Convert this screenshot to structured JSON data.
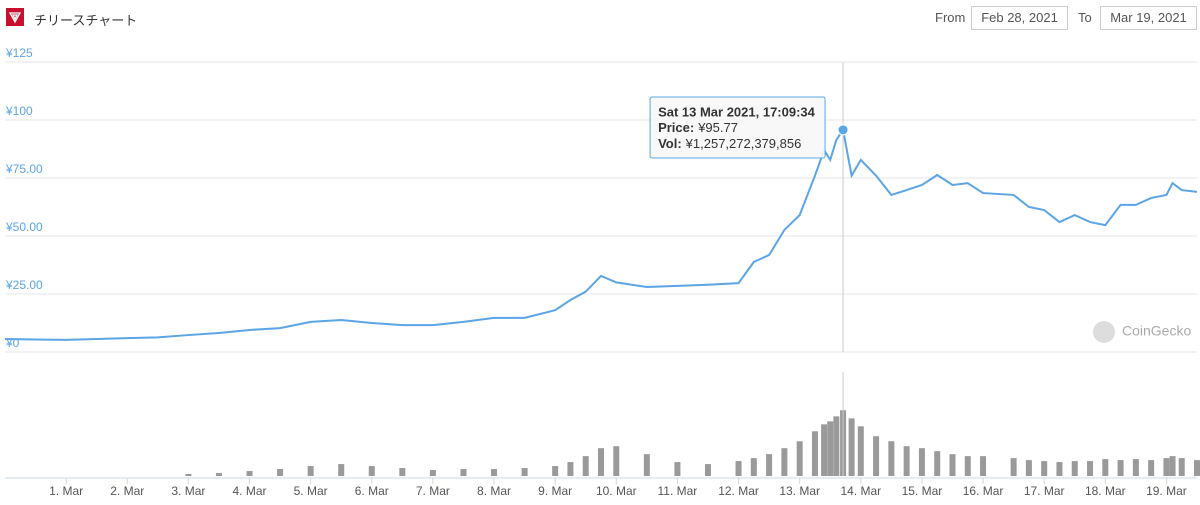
{
  "header": {
    "title": "チリースチャート",
    "from_label": "From",
    "from_date": "Feb 28, 2021",
    "to_label": "To",
    "to_date": "Mar 19, 2021"
  },
  "chart_data": {
    "type": "line",
    "color": "#5ba4e6",
    "x": [
      0,
      0.5,
      1,
      1.5,
      2,
      2.5,
      3,
      3.5,
      4,
      4.5,
      5,
      5.5,
      6,
      6.5,
      7,
      7.5,
      8,
      8.5,
      9,
      9.25,
      9.5,
      9.75,
      10,
      10.5,
      11,
      11.5,
      12,
      12.25,
      12.5,
      12.75,
      13,
      13.25,
      13.4,
      13.5,
      13.6,
      13.71,
      13.85,
      14,
      14.25,
      14.5,
      14.75,
      15,
      15.25,
      15.5,
      15.75,
      16,
      16.5,
      16.75,
      17,
      17.25,
      17.5,
      17.75,
      18,
      18.25,
      18.5,
      18.75,
      19,
      19.1,
      19.25,
      19.5
    ],
    "values": [
      5.6,
      5.4,
      5.2,
      5.6,
      6,
      6.3,
      7.3,
      8.2,
      9.5,
      10.3,
      13,
      13.8,
      12.5,
      11.6,
      11.6,
      13,
      14.7,
      14.7,
      18,
      22.4,
      26,
      32.8,
      30,
      28,
      28.5,
      29,
      29.7,
      38.8,
      41.8,
      52.6,
      59,
      76,
      87,
      82.8,
      91.4,
      95.77,
      76,
      82.8,
      76,
      67.7,
      69.8,
      72,
      76.3,
      72,
      72.8,
      68.5,
      67.7,
      62.5,
      61.2,
      56,
      59,
      56,
      54.7,
      63.4,
      63.4,
      66.4,
      67.7,
      72.8,
      69.8,
      69
    ],
    "volumes": [
      0,
      0,
      0,
      0,
      0,
      0,
      38000000000.0,
      57000000000.0,
      95000000000.0,
      133000000000.0,
      190000000000.0,
      228000000000.0,
      190000000000.0,
      152000000000.0,
      114000000000.0,
      133000000000.0,
      133000000000.0,
      152000000000.0,
      190000000000.0,
      266000000000.0,
      380000000000.0,
      532000000000.0,
      570000000000.0,
      418000000000.0,
      266000000000.0,
      228000000000.0,
      285000000000.0,
      342000000000.0,
      418000000000.0,
      532000000000.0,
      665000000000.0,
      855000000000.0,
      988000000000.0,
      1045000000000.0,
      1140000000000.0,
      1257272379856.0,
      1102000000000.0,
      950000000000.0,
      760000000000.0,
      665000000000.0,
      570000000000.0,
      532000000000.0,
      475000000000.0,
      418000000000.0,
      380000000000.0,
      380000000000.0,
      342000000000.0,
      304000000000.0,
      285000000000.0,
      266000000000.0,
      285000000000.0,
      285000000000.0,
      323000000000.0,
      304000000000.0,
      323000000000.0,
      304000000000.0,
      342000000000.0,
      380000000000.0,
      342000000000.0,
      304000000000.0
    ],
    "volume_color": "#9a9a9a",
    "volume_ylim": [
      0,
      1300000000000.0
    ],
    "ylim": [
      0,
      125
    ],
    "yticks": [
      {
        "value": 0,
        "label": "¥0"
      },
      {
        "value": 25,
        "label": "¥25.00"
      },
      {
        "value": 50,
        "label": "¥50.00"
      },
      {
        "value": 75,
        "label": "¥75.00"
      },
      {
        "value": 100,
        "label": "¥100"
      },
      {
        "value": 125,
        "label": "¥125"
      }
    ],
    "xlim": [
      0,
      19.5
    ],
    "xticks": [
      {
        "value": 1,
        "label": "1. Mar"
      },
      {
        "value": 2,
        "label": "2. Mar"
      },
      {
        "value": 3,
        "label": "3. Mar"
      },
      {
        "value": 4,
        "label": "4. Mar"
      },
      {
        "value": 5,
        "label": "5. Mar"
      },
      {
        "value": 6,
        "label": "6. Mar"
      },
      {
        "value": 7,
        "label": "7. Mar"
      },
      {
        "value": 8,
        "label": "8. Mar"
      },
      {
        "value": 9,
        "label": "9. Mar"
      },
      {
        "value": 10,
        "label": "10. Mar"
      },
      {
        "value": 11,
        "label": "11. Mar"
      },
      {
        "value": 12,
        "label": "12. Mar"
      },
      {
        "value": 13,
        "label": "13. Mar"
      },
      {
        "value": 14,
        "label": "14. Mar"
      },
      {
        "value": 15,
        "label": "15. Mar"
      },
      {
        "value": 16,
        "label": "16. Mar"
      },
      {
        "value": 17,
        "label": "17. Mar"
      },
      {
        "value": 18,
        "label": "18. Mar"
      },
      {
        "value": 19,
        "label": "19. Mar"
      }
    ],
    "grid": true,
    "tooltip": {
      "title": "Sat 13 Mar 2021, 17:09:34",
      "price_label": "Price:",
      "price": "¥95.77",
      "vol_label": "Vol:",
      "vol": "¥1,257,272,379,856"
    },
    "watermark": "CoinGecko"
  }
}
